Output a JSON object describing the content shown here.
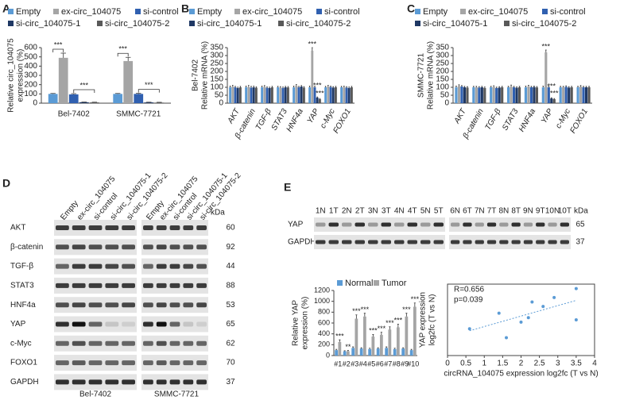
{
  "chart_data": [
    {
      "type": "bar",
      "panel": "A",
      "ylabel": [
        "Relative circ_104075",
        "expression (%)"
      ],
      "categories": [
        "Bel-7402",
        "SMMC-7721"
      ],
      "series": [
        {
          "name": "Empty",
          "color": "#5b9bd5",
          "values": [
            100,
            100
          ],
          "errors": [
            5,
            5
          ]
        },
        {
          "name": "ex-circ_104075",
          "color": "#a5a5a5",
          "values": [
            490,
            455
          ],
          "errors": [
            50,
            40
          ]
        },
        {
          "name": "si-control",
          "color": "#3060b0",
          "values": [
            95,
            100
          ],
          "errors": [
            8,
            6
          ]
        },
        {
          "name": "si-circ_104075-1",
          "color": "#1f3864",
          "values": [
            10,
            8
          ],
          "errors": [
            3,
            3
          ]
        },
        {
          "name": "si-circ_104075-2",
          "color": "#595959",
          "values": [
            8,
            6
          ],
          "errors": [
            3,
            3
          ]
        }
      ],
      "ylim": [
        0,
        600
      ],
      "yticks": [
        0,
        100,
        200,
        300,
        400,
        500,
        600
      ],
      "legend": "top",
      "annotations": [
        "***",
        "***",
        "***",
        "***"
      ]
    },
    {
      "type": "bar",
      "panel": "B",
      "ylabel": [
        "Bel-7402",
        "Relative mRNA (%)"
      ],
      "categories": [
        "AKT",
        "β-catenin",
        "TGF-β",
        "STAT3",
        "HNF4a",
        "YAP",
        "c-Myc",
        "FOXO1"
      ],
      "series": [
        {
          "name": "Empty",
          "color": "#5b9bd5",
          "values": [
            100,
            100,
            100,
            100,
            100,
            100,
            100,
            100
          ],
          "errors": [
            8,
            8,
            8,
            6,
            8,
            8,
            6,
            6
          ]
        },
        {
          "name": "ex-circ_104075",
          "color": "#a5a5a5",
          "values": [
            105,
            102,
            103,
            98,
            110,
            330,
            105,
            102
          ],
          "errors": [
            8,
            10,
            8,
            6,
            8,
            20,
            8,
            6
          ]
        },
        {
          "name": "si-control",
          "color": "#3060b0",
          "values": [
            100,
            98,
            97,
            96,
            100,
            100,
            102,
            98
          ],
          "errors": [
            6,
            8,
            6,
            6,
            6,
            8,
            6,
            6
          ]
        },
        {
          "name": "si-circ_104075-1",
          "color": "#1f3864",
          "values": [
            95,
            100,
            95,
            100,
            105,
            35,
            98,
            96
          ],
          "errors": [
            6,
            8,
            6,
            6,
            6,
            4,
            6,
            6
          ]
        },
        {
          "name": "si-circ_104075-2",
          "color": "#595959",
          "values": [
            100,
            97,
            100,
            99,
            98,
            25,
            100,
            100
          ],
          "errors": [
            6,
            6,
            6,
            6,
            6,
            4,
            6,
            6
          ]
        }
      ],
      "ylim": [
        0,
        350
      ],
      "yticks": [
        0,
        50,
        100,
        150,
        200,
        250,
        300,
        350
      ],
      "legend": "top",
      "annotations": [
        "***",
        "***",
        "***"
      ]
    },
    {
      "type": "bar",
      "panel": "C",
      "ylabel": [
        "SMMC-7721",
        "Relative mRNA (%)"
      ],
      "categories": [
        "AKT",
        "β-catenin",
        "TGF-β",
        "STAT3",
        "HNF4a",
        "YAP",
        "c-Myc",
        "FOXO1"
      ],
      "series": [
        {
          "name": "Empty",
          "color": "#5b9bd5",
          "values": [
            100,
            100,
            100,
            100,
            100,
            100,
            100,
            100
          ],
          "errors": [
            8,
            6,
            6,
            6,
            8,
            8,
            6,
            6
          ]
        },
        {
          "name": "ex-circ_104075",
          "color": "#a5a5a5",
          "values": [
            108,
            100,
            102,
            104,
            105,
            320,
            100,
            105
          ],
          "errors": [
            8,
            6,
            8,
            10,
            8,
            15,
            6,
            6
          ]
        },
        {
          "name": "si-control",
          "color": "#3060b0",
          "values": [
            105,
            98,
            95,
            100,
            100,
            100,
            103,
            100
          ],
          "errors": [
            6,
            6,
            6,
            6,
            6,
            8,
            6,
            6
          ]
        },
        {
          "name": "si-circ_104075-1",
          "color": "#1f3864",
          "values": [
            100,
            100,
            98,
            97,
            102,
            30,
            98,
            100
          ],
          "errors": [
            6,
            6,
            6,
            6,
            6,
            4,
            6,
            6
          ]
        },
        {
          "name": "si-circ_104075-2",
          "color": "#595959",
          "values": [
            98,
            96,
            100,
            100,
            99,
            25,
            100,
            100
          ],
          "errors": [
            6,
            6,
            6,
            6,
            6,
            4,
            6,
            6
          ]
        }
      ],
      "ylim": [
        0,
        350
      ],
      "yticks": [
        0,
        50,
        100,
        150,
        200,
        250,
        300,
        350
      ],
      "legend": "top",
      "annotations": [
        "***",
        "***",
        "***"
      ]
    },
    {
      "type": "bar",
      "ylabel": [
        "Relative YAP",
        "expression (%)"
      ],
      "categories": [
        "#1",
        "#2",
        "#3",
        "#4",
        "#5",
        "#6",
        "#7",
        "#8",
        "#9",
        "#10"
      ],
      "series": [
        {
          "name": "Normal",
          "color": "#5b9bd5",
          "values": [
            100,
            80,
            140,
            130,
            120,
            130,
            140,
            120,
            130,
            100
          ],
          "errors": [
            15,
            10,
            20,
            15,
            15,
            15,
            20,
            15,
            15,
            15
          ]
        },
        {
          "name": "Tumor",
          "color": "#a5a5a5",
          "values": [
            250,
            80,
            680,
            720,
            350,
            380,
            480,
            520,
            720,
            900
          ],
          "errors": [
            40,
            15,
            70,
            60,
            40,
            50,
            50,
            60,
            60,
            70
          ]
        }
      ],
      "ylim": [
        0,
        1200
      ],
      "yticks": [
        0,
        200,
        400,
        600,
        800,
        1000,
        1200
      ],
      "legend": "top",
      "annotations": [
        "***",
        "**",
        "***",
        "***",
        "***",
        "***",
        "***",
        "***",
        "***",
        "***"
      ]
    },
    {
      "type": "scatter",
      "xlabel": "circRNA_104075 expression log2fc (T vs N)",
      "ylabel": [
        "YAP expression",
        "log2fc (T vs N)"
      ],
      "x": [
        0.6,
        1.4,
        1.6,
        2.0,
        2.2,
        2.3,
        2.6,
        2.9,
        3.5,
        3.5
      ],
      "values": [
        1.2,
        1.9,
        0.8,
        1.5,
        1.7,
        2.4,
        2.2,
        2.6,
        3.0,
        1.6
      ],
      "color": "#5b9bd5",
      "trendline": true,
      "xlim": [
        0,
        4
      ],
      "xticks": [
        0,
        0.5,
        1,
        1.5,
        2,
        2.5,
        3,
        3.5,
        4
      ],
      "ylim": [
        0,
        3.2
      ],
      "annotations": [
        "R=0.656",
        "p=0.039"
      ]
    }
  ],
  "blot_d": {
    "panel": "D",
    "lanes": [
      "Empty",
      "ex-circ_104075",
      "si-control",
      "si-circ_104075-1",
      "si-circ_104075-2"
    ],
    "groups": [
      "Bel-7402",
      "SMMC-7721"
    ],
    "unit": "kDa",
    "rows": [
      {
        "label": "AKT",
        "kda": 60
      },
      {
        "label": "β-catenin",
        "kda": 92
      },
      {
        "label": "TGF-β",
        "kda": 44
      },
      {
        "label": "STAT3",
        "kda": 88
      },
      {
        "label": "HNF4a",
        "kda": 53
      },
      {
        "label": "YAP",
        "kda": 65
      },
      {
        "label": "c-Myc",
        "kda": 62
      },
      {
        "label": "FOXO1",
        "kda": 70
      },
      {
        "label": "GAPDH",
        "kda": 37
      }
    ]
  },
  "blot_e": {
    "panel": "E",
    "lanes_left": [
      "1N",
      "1T",
      "2N",
      "2T",
      "3N",
      "3T",
      "4N",
      "4T",
      "5N",
      "5T"
    ],
    "lanes_right": [
      "6N",
      "6T",
      "7N",
      "7T",
      "8N",
      "8T",
      "9N",
      "9T",
      "10N",
      "10T"
    ],
    "unit": "kDa",
    "rows": [
      {
        "label": "YAP",
        "kda": 65
      },
      {
        "label": "GAPDH",
        "kda": 37
      }
    ]
  }
}
